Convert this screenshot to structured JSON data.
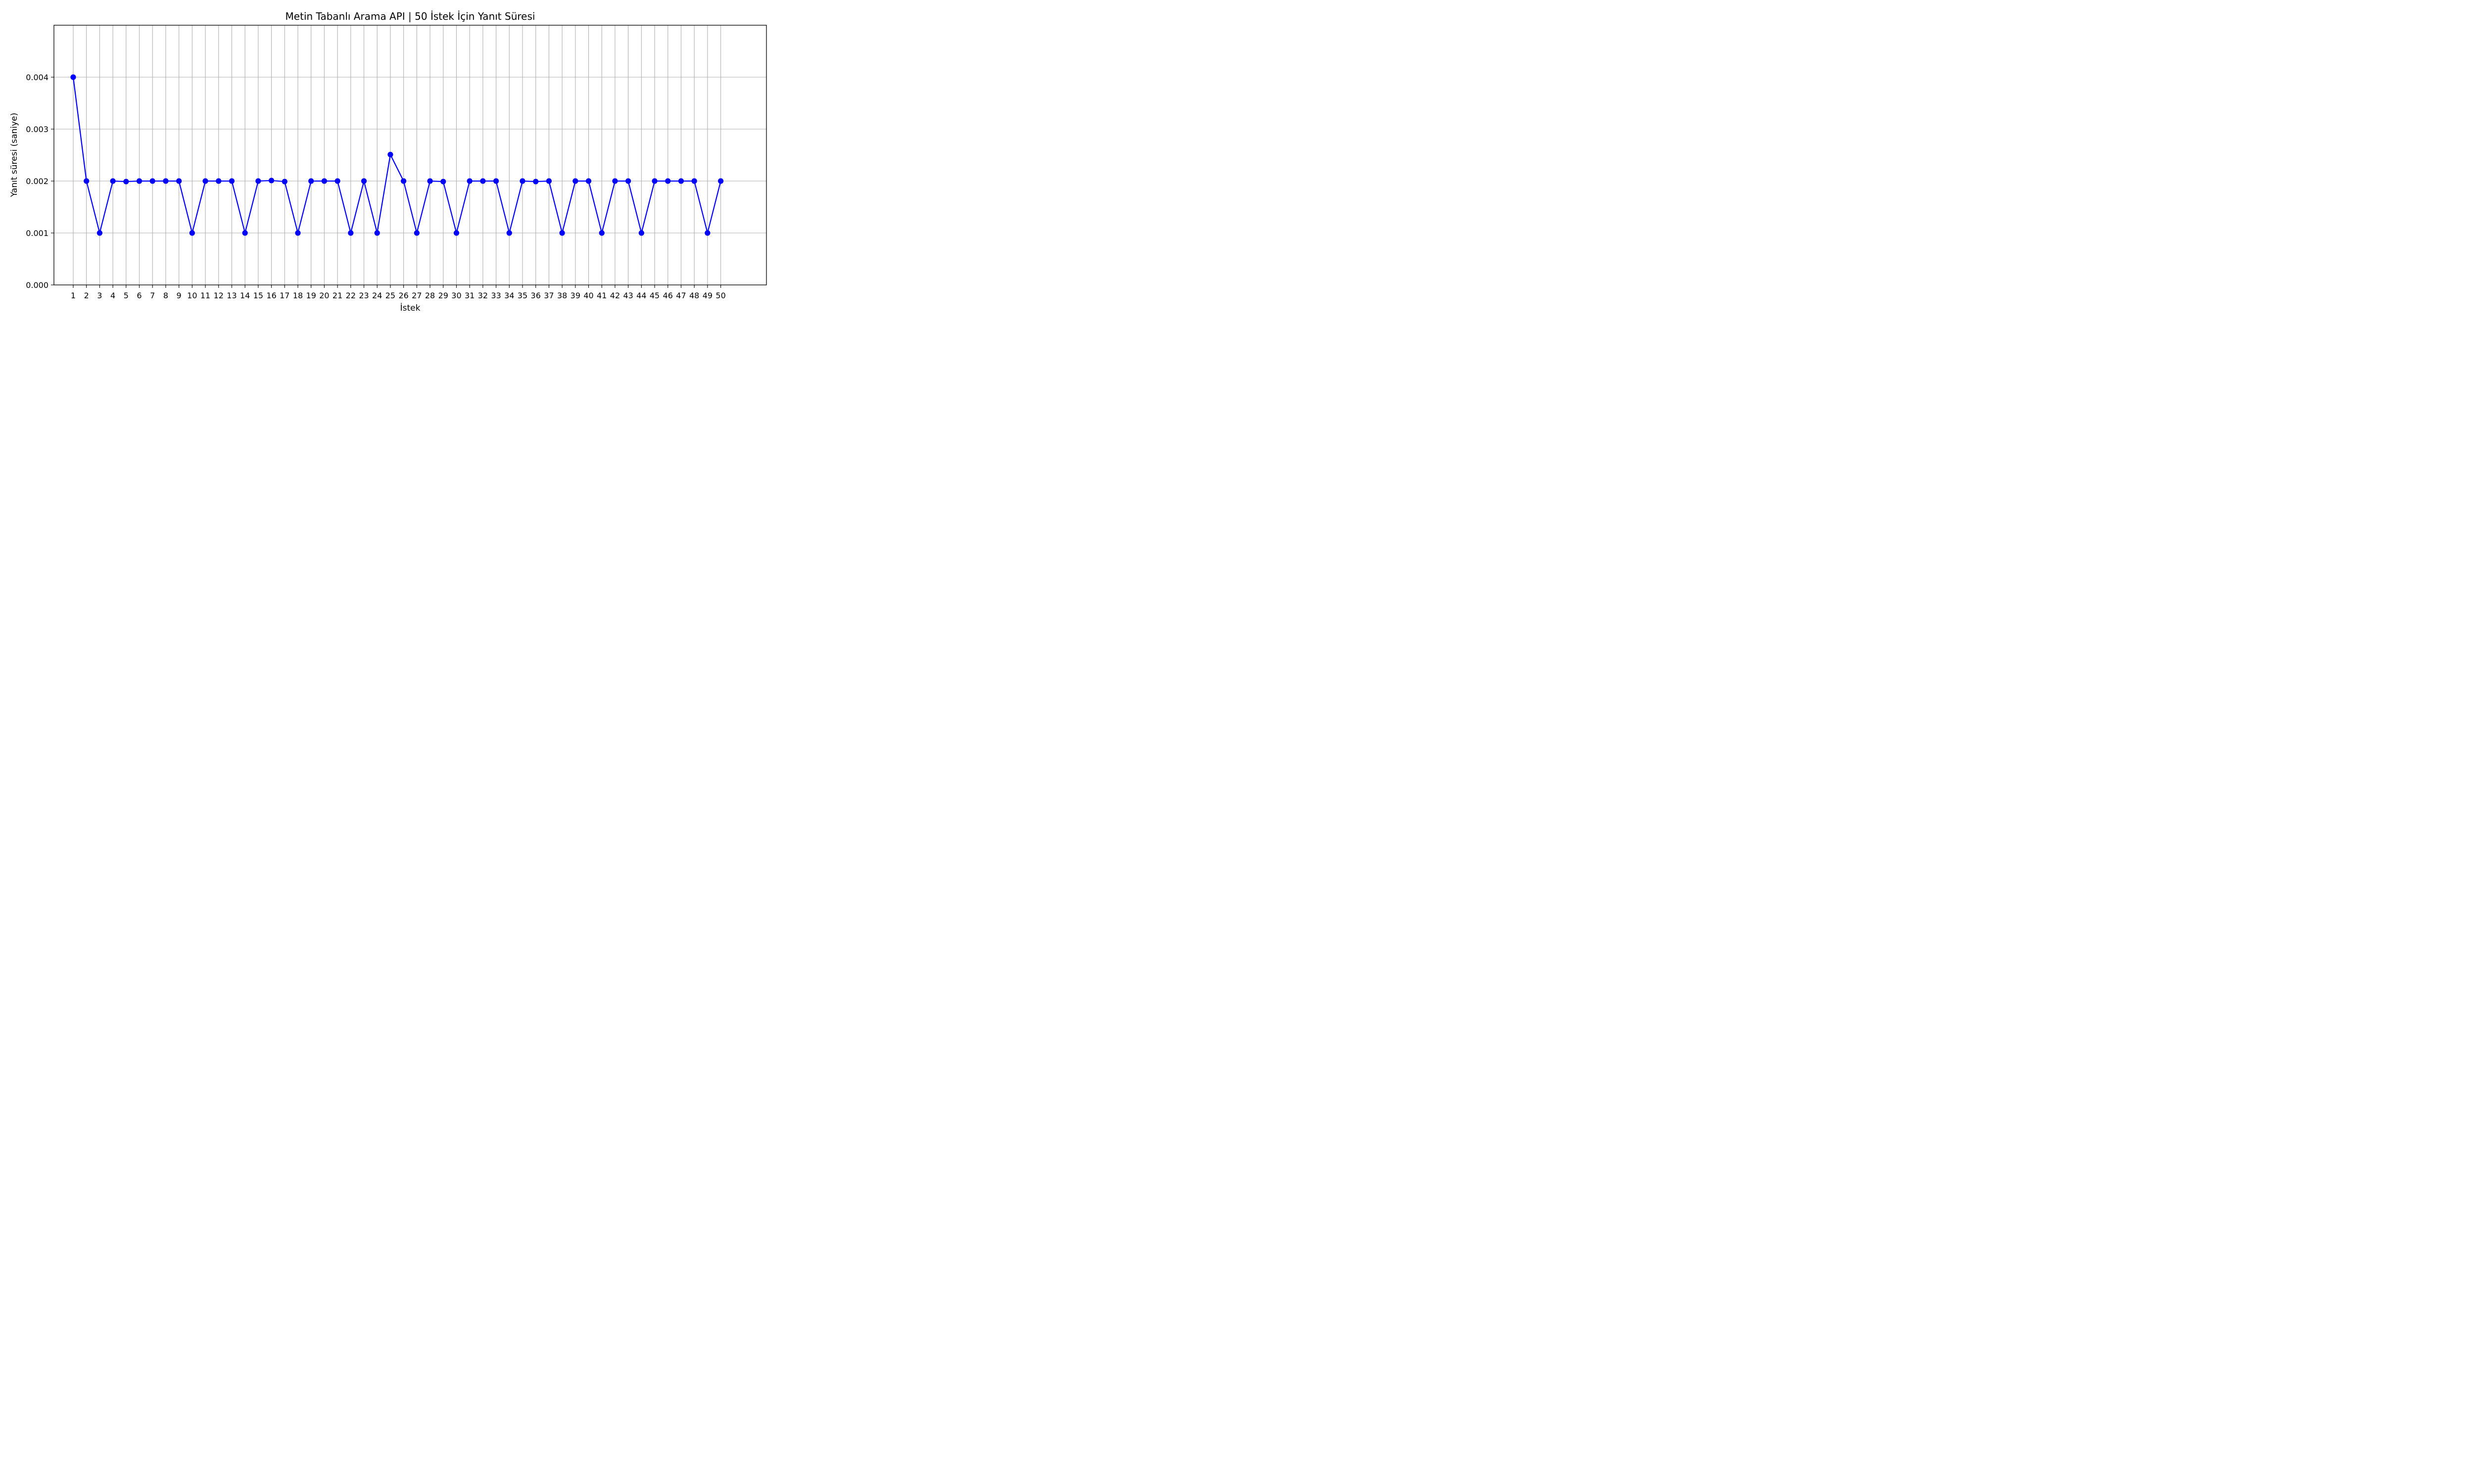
{
  "chart_data": {
    "type": "line",
    "title": "Metin Tabanlı Arama API | 50 İstek İçin Yanıt Süresi",
    "xlabel": "İstek",
    "ylabel": "Yanıt süresi (saniye)",
    "x": [
      1,
      2,
      3,
      4,
      5,
      6,
      7,
      8,
      9,
      10,
      11,
      12,
      13,
      14,
      15,
      16,
      17,
      18,
      19,
      20,
      21,
      22,
      23,
      24,
      25,
      26,
      27,
      28,
      29,
      30,
      31,
      32,
      33,
      34,
      35,
      36,
      37,
      38,
      39,
      40,
      41,
      42,
      43,
      44,
      45,
      46,
      47,
      48,
      49,
      50
    ],
    "x_tick_labels": [
      "1",
      "2",
      "3",
      "4",
      "5",
      "6",
      "7",
      "8",
      "9",
      "10",
      "11",
      "12",
      "13",
      "14",
      "15",
      "16",
      "17",
      "18",
      "19",
      "20",
      "21",
      "22",
      "23",
      "24",
      "25",
      "26",
      "27",
      "28",
      "29",
      "30",
      "31",
      "32",
      "33",
      "34",
      "35",
      "36",
      "37",
      "38",
      "39",
      "40",
      "41",
      "42",
      "43",
      "44",
      "45",
      "46",
      "47",
      "48",
      "49",
      "50"
    ],
    "series": [
      {
        "values": [
          0.004,
          0.002,
          0.001,
          0.002,
          0.00199,
          0.002,
          0.002,
          0.002,
          0.002,
          0.001,
          0.002,
          0.002,
          0.002,
          0.001,
          0.002,
          0.00201,
          0.00199,
          0.001,
          0.002,
          0.002,
          0.002,
          0.001,
          0.002,
          0.001,
          0.00251,
          0.002,
          0.001,
          0.002,
          0.00199,
          0.001,
          0.002,
          0.002,
          0.002,
          0.001,
          0.002,
          0.00199,
          0.002,
          0.001,
          0.002,
          0.002,
          0.001,
          0.002,
          0.002,
          0.001,
          0.002,
          0.002,
          0.002,
          0.002,
          0.001,
          0.002
        ],
        "color": "#0000ff",
        "marker": "circle"
      }
    ],
    "y_ticks": [
      0,
      0.001,
      0.002,
      0.003,
      0.004
    ],
    "y_tick_labels": [
      "0.000",
      "0.001",
      "0.002",
      "0.003",
      "0.004"
    ],
    "ylim": [
      0,
      0.005
    ],
    "xlim": [
      -0.46,
      53.46
    ],
    "grid": true
  }
}
